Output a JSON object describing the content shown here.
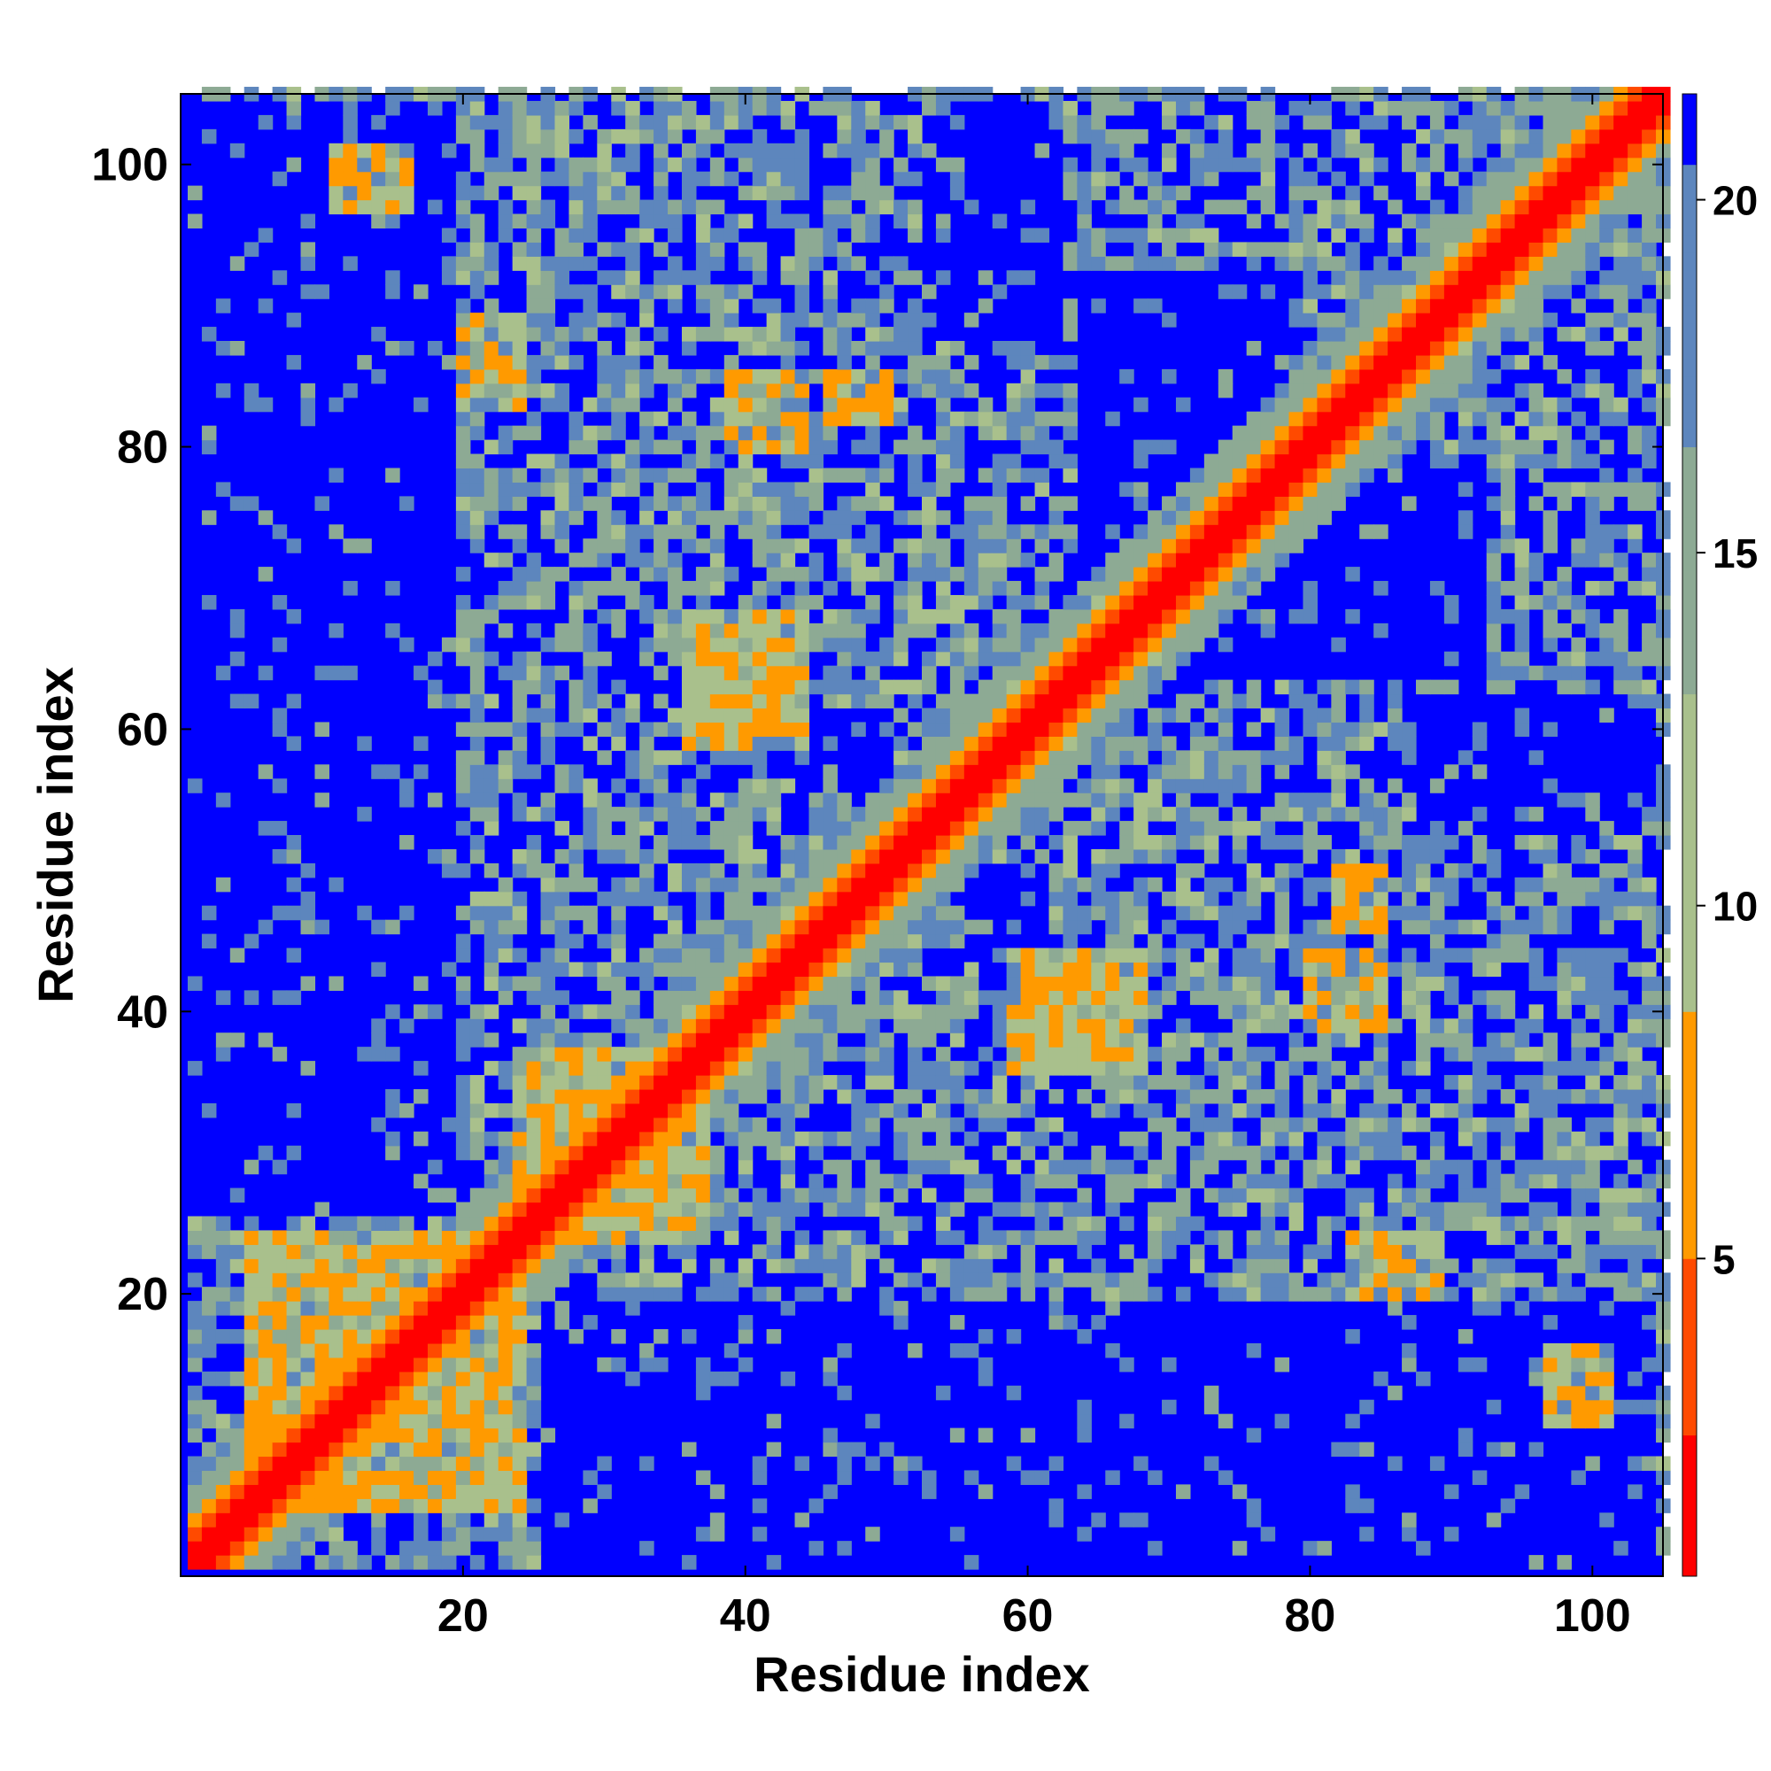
{
  "chart_data": {
    "type": "heatmap",
    "title": "",
    "xlabel": "Residue index",
    "ylabel": "Residue index",
    "n_residues": 105,
    "xlim": [
      1,
      105
    ],
    "ylim": [
      1,
      105
    ],
    "x_ticks": [
      20,
      40,
      60,
      80,
      100
    ],
    "y_ticks": [
      20,
      40,
      60,
      80,
      100
    ],
    "colorbar": {
      "ticks": [
        5,
        10,
        15,
        20
      ],
      "range": [
        0.5,
        21.5
      ],
      "label": ""
    },
    "colors": {
      "near": "#ff0000",
      "close": "#ff4a00",
      "contact": "#ff9a00",
      "mid_light": "#a9c08c",
      "mid": "#8daa94",
      "mid_blue": "#5d86bd",
      "far": "#0000ff"
    },
    "contact_patches": [
      {
        "x": [
          11,
          16
        ],
        "y": [
          97,
          101
        ],
        "level": "contact"
      },
      {
        "x": [
          20,
          24
        ],
        "y": [
          83,
          89
        ],
        "level": "contact"
      },
      {
        "x": [
          39,
          44
        ],
        "y": [
          80,
          85
        ],
        "level": "contact"
      },
      {
        "x": [
          46,
          50
        ],
        "y": [
          82,
          85
        ],
        "level": "contact"
      },
      {
        "x": [
          36,
          44
        ],
        "y": [
          59,
          68
        ],
        "level": "contact"
      },
      {
        "x": [
          60,
          68
        ],
        "y": [
          37,
          44
        ],
        "level": "contact"
      },
      {
        "x": [
          80,
          86
        ],
        "y": [
          39,
          49
        ],
        "level": "contact"
      },
      {
        "x": [
          83,
          89
        ],
        "y": [
          20,
          24
        ],
        "level": "contact"
      },
      {
        "x": [
          97,
          104
        ],
        "y": [
          8,
          16
        ],
        "level": "contact"
      },
      {
        "x": [
          24,
          36
        ],
        "y": [
          24,
          37
        ],
        "level": "contact"
      },
      {
        "x": [
          5,
          20
        ],
        "y": [
          5,
          24
        ],
        "level": "contact"
      }
    ],
    "far_regions": [
      {
        "x": [
          1,
          19
        ],
        "y": [
          26,
          104
        ],
        "value": 21
      },
      {
        "x": [
          17,
          103
        ],
        "y": [
          1,
          20
        ],
        "value": 21
      },
      {
        "x": [
          53,
          62
        ],
        "y": [
          88,
          104
        ],
        "value": 21
      },
      {
        "x": [
          64,
          78
        ],
        "y": [
          65,
          92
        ],
        "value": 21
      },
      {
        "x": [
          68,
          80
        ],
        "y": [
          50,
          63
        ],
        "value": 21
      },
      {
        "x": [
          86,
          103
        ],
        "y": [
          53,
          66
        ],
        "value": 21
      },
      {
        "x": [
          87,
          103
        ],
        "y": [
          67,
          82
        ],
        "value": 21
      },
      {
        "x": [
          44,
          50
        ],
        "y": [
          56,
          61
        ],
        "value": 21
      },
      {
        "x": [
          90,
          103
        ],
        "y": [
          24,
          39
        ],
        "value": 21
      },
      {
        "x": [
          58,
          70
        ],
        "y": [
          22,
          35
        ],
        "value": 21
      }
    ]
  }
}
